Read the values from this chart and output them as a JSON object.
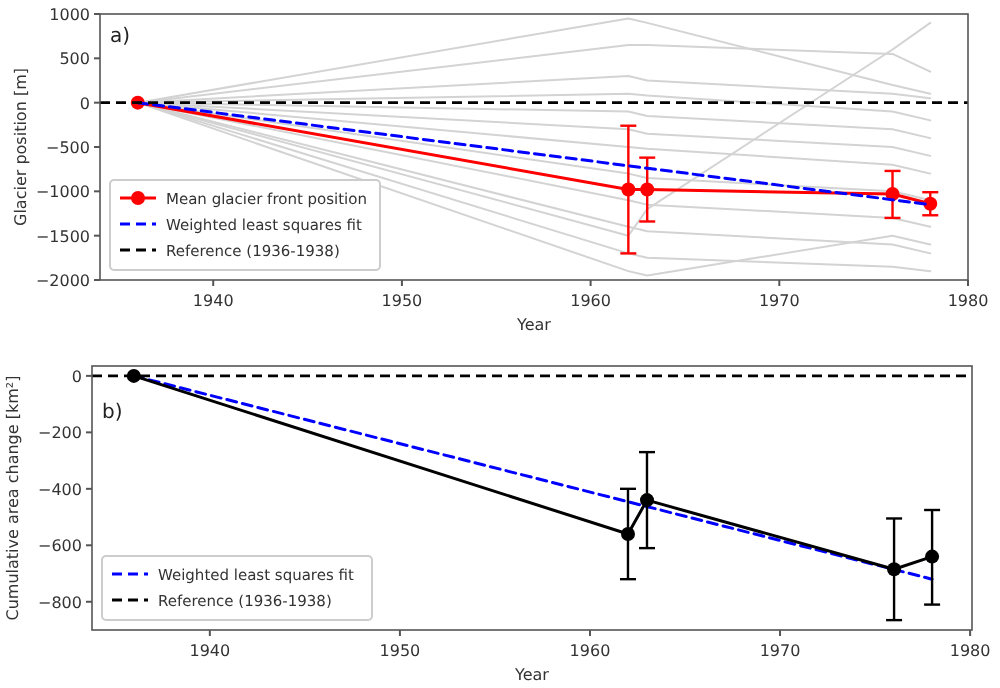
{
  "chart_data": [
    {
      "type": "line",
      "ylabel": "Glacier position [m]",
      "xlabel": "Year",
      "xlim": [
        1934,
        1980
      ],
      "xticks": [
        1940,
        1950,
        1960,
        1970,
        1980
      ],
      "ylim": [
        -2000,
        1000
      ],
      "yticks": [
        -2000,
        -1500,
        -1000,
        -500,
        0,
        500,
        1000
      ],
      "legend": "bottom left",
      "annotations": [
        "a)"
      ],
      "ref_lines": [
        {
          "axis": "y",
          "value": 0,
          "label": "Reference (1936-1938)",
          "color": "#000000",
          "line_style": "dashed"
        }
      ],
      "series": [
        {
          "color": "#d3d3d3",
          "x": [
            1936,
            1962,
            1963,
            1976,
            1978
          ],
          "values": [
            0,
            950,
            900,
            200,
            100
          ],
          "marker": "none"
        },
        {
          "color": "#d3d3d3",
          "x": [
            1936,
            1962,
            1963,
            1976,
            1978
          ],
          "values": [
            0,
            650,
            650,
            550,
            350
          ],
          "marker": "none"
        },
        {
          "color": "#d3d3d3",
          "x": [
            1936,
            1962,
            1963,
            1976,
            1978
          ],
          "values": [
            0,
            300,
            250,
            100,
            50
          ],
          "marker": "none"
        },
        {
          "color": "#d3d3d3",
          "x": [
            1936,
            1962,
            1963,
            1976,
            1978
          ],
          "values": [
            0,
            100,
            80,
            -100,
            -200
          ],
          "marker": "none"
        },
        {
          "color": "#d3d3d3",
          "x": [
            1936,
            1962,
            1963,
            1976,
            1978
          ],
          "values": [
            0,
            -100,
            -150,
            -300,
            -400
          ],
          "marker": "none"
        },
        {
          "color": "#d3d3d3",
          "x": [
            1936,
            1962,
            1963,
            1976,
            1978
          ],
          "values": [
            0,
            -300,
            -350,
            -500,
            -600
          ],
          "marker": "none"
        },
        {
          "color": "#d3d3d3",
          "x": [
            1936,
            1962,
            1963,
            1976,
            1978
          ],
          "values": [
            0,
            -500,
            -520,
            -700,
            -800
          ],
          "marker": "none"
        },
        {
          "color": "#d3d3d3",
          "x": [
            1936,
            1962,
            1963,
            1976,
            1978
          ],
          "values": [
            0,
            -800,
            -850,
            -1000,
            -1100
          ],
          "marker": "none"
        },
        {
          "color": "#d3d3d3",
          "x": [
            1936,
            1962,
            1963,
            1976,
            1978
          ],
          "values": [
            0,
            -1100,
            -1150,
            -1300,
            -1400
          ],
          "marker": "none"
        },
        {
          "color": "#d3d3d3",
          "x": [
            1936,
            1962,
            1963,
            1976,
            1978
          ],
          "values": [
            0,
            -1400,
            -1450,
            -1600,
            -1700
          ],
          "marker": "none"
        },
        {
          "color": "#d3d3d3",
          "x": [
            1936,
            1962,
            1963,
            1976,
            1978
          ],
          "values": [
            0,
            -1700,
            -1750,
            -1850,
            -1900
          ],
          "marker": "none"
        },
        {
          "color": "#d3d3d3",
          "x": [
            1936,
            1962,
            1963,
            1976,
            1978
          ],
          "values": [
            0,
            -1900,
            -1950,
            -1500,
            -1600
          ],
          "marker": "none"
        },
        {
          "color": "#d3d3d3",
          "x": [
            1936,
            1962,
            1963,
            1976,
            1978
          ],
          "values": [
            0,
            -1500,
            -1200,
            600,
            900
          ],
          "marker": "none"
        },
        {
          "name": "Mean glacier front position",
          "color": "#ff0000",
          "x": [
            1936,
            1962,
            1963,
            1976,
            1978
          ],
          "values": [
            0,
            -980,
            -980,
            -1030,
            -1140
          ],
          "errors": [
            null,
            [
              -1700,
              -260
            ],
            [
              -1340,
              -620
            ],
            [
              -1300,
              -770
            ],
            [
              -1270,
              -1010
            ]
          ],
          "marker": "circle"
        },
        {
          "name": "Weighted least squares fit",
          "color": "#0000ff",
          "x": [
            1936,
            1978
          ],
          "values": [
            0,
            -1150
          ],
          "marker": "none",
          "line_style": "dashed"
        }
      ]
    },
    {
      "type": "line",
      "ylabel": "Cumulative area change [km²]",
      "xlabel": "Year",
      "xlim": [
        1933.8,
        1980.1
      ],
      "xticks": [
        1940,
        1950,
        1960,
        1970,
        1980
      ],
      "ylim": [
        -900,
        35
      ],
      "yticks": [
        -800,
        -600,
        -400,
        -200,
        0
      ],
      "legend": "bottom left",
      "annotations": [
        "b)"
      ],
      "ref_lines": [
        {
          "axis": "y",
          "value": 0,
          "label": "Reference (1936-1938)",
          "color": "#000000",
          "line_style": "dashed"
        }
      ],
      "series": [
        {
          "name": "Weighted least squares fit",
          "color": "#0000ff",
          "x": [
            1936,
            1978
          ],
          "values": [
            0,
            -720
          ],
          "marker": "none",
          "line_style": "dashed"
        },
        {
          "color": "#000000",
          "x": [
            1936,
            1962,
            1963,
            1976,
            1978
          ],
          "values": [
            0,
            -560,
            -440,
            -685,
            -640
          ],
          "errors": [
            null,
            [
              -720,
              -400
            ],
            [
              -610,
              -270
            ],
            [
              -865,
              -505
            ],
            [
              -810,
              -475
            ]
          ],
          "marker": "circle"
        }
      ]
    }
  ]
}
